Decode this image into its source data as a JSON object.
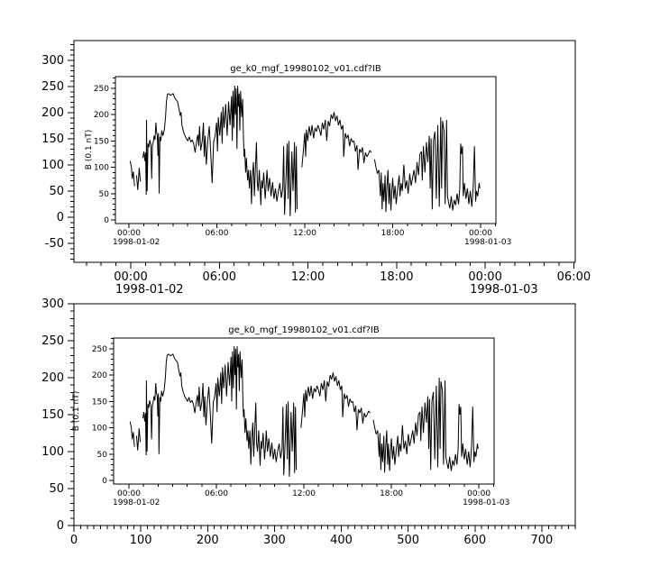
{
  "colors": {
    "foreground": "#000000",
    "background": "#ffffff"
  },
  "chart_data": {
    "type": "line",
    "title": "ge_k0_mgf_19980102_v01.cdf?IB",
    "inner_ylabel": "B (0.1 nT)",
    "series_name": "IB",
    "series_units": "0.1 nT",
    "x_units": "hours since 1998-01-02 00:00 UT",
    "inner_axis": {
      "ylim": [
        -7,
        272
      ],
      "xlim_hours": [
        -0.95,
        25.05
      ],
      "y_ticks": [
        0,
        50,
        100,
        150,
        200,
        250
      ],
      "y_minor": {
        "from": 0,
        "to": 270,
        "step": 10
      },
      "x_minor_hours": {
        "from": 0,
        "to": 25,
        "step": 1
      },
      "x_ticks": [
        {
          "hour": 0,
          "label": "00:00",
          "date": "1998-01-02"
        },
        {
          "hour": 6,
          "label": "06:00"
        },
        {
          "hour": 12,
          "label": "12:00"
        },
        {
          "hour": 18,
          "label": "18:00"
        },
        {
          "hour": 24,
          "label": "00:00",
          "date": "1998-01-03"
        }
      ]
    },
    "panels": [
      {
        "id": "top",
        "outer_x_type": "time",
        "outer_ylim": [
          -86,
          338
        ],
        "outer_y_ticks": [
          -50,
          0,
          50,
          100,
          150,
          200,
          250,
          300
        ],
        "outer_y_minor": {
          "from": -80,
          "to": 330,
          "step": 10
        },
        "outer_xlim_hours": [
          -3.85,
          30.1
        ],
        "outer_x_minor_hours": {
          "from": -3,
          "to": 30,
          "step": 1
        },
        "outer_x_ticks": [
          {
            "hour": 0,
            "label": "00:00",
            "date": "1998-01-02"
          },
          {
            "hour": 6,
            "label": "06:00"
          },
          {
            "hour": 12,
            "label": "12:00"
          },
          {
            "hour": 18,
            "label": "18:00"
          },
          {
            "hour": 24,
            "label": "00:00",
            "date": "1998-01-03"
          },
          {
            "hour": 30,
            "label": "06:00"
          }
        ]
      },
      {
        "id": "bottom",
        "outer_x_type": "numeric",
        "outer_ylim": [
          0,
          300
        ],
        "outer_y_ticks": [
          0,
          50,
          100,
          150,
          200,
          250,
          300
        ],
        "outer_y_minor": {
          "from": 0,
          "to": 300,
          "step": 10
        },
        "outer_xlim": [
          0,
          750
        ],
        "outer_x_minor": {
          "from": 0,
          "to": 750,
          "step": 10
        },
        "outer_x_ticks": [
          0,
          100,
          200,
          300,
          400,
          500,
          600,
          700
        ]
      }
    ],
    "points": [
      [
        0.08,
        112
      ],
      [
        0.17,
        100
      ],
      [
        0.22,
        78
      ],
      [
        0.3,
        92
      ],
      [
        0.38,
        64
      ],
      [
        0.45,
        null
      ],
      [
        0.52,
        85
      ],
      [
        0.6,
        57
      ],
      [
        0.7,
        99
      ],
      [
        0.78,
        73
      ],
      [
        0.85,
        null
      ],
      [
        0.95,
        118
      ],
      [
        1.02,
        130
      ],
      [
        1.08,
        112
      ],
      [
        1.14,
        128
      ],
      [
        1.18,
        48
      ],
      [
        1.2,
        190
      ],
      [
        1.24,
        55
      ],
      [
        1.3,
        145
      ],
      [
        1.36,
        138
      ],
      [
        1.42,
        152
      ],
      [
        1.5,
        143
      ],
      [
        1.55,
        78
      ],
      [
        1.6,
        140
      ],
      [
        1.66,
        148
      ],
      [
        1.72,
        160
      ],
      [
        1.78,
        152
      ],
      [
        1.84,
        185
      ],
      [
        1.88,
        168
      ],
      [
        1.94,
        160
      ],
      [
        1.98,
        122
      ],
      [
        2.02,
        165
      ],
      [
        2.06,
        50
      ],
      [
        2.12,
        158
      ],
      [
        2.18,
        150
      ],
      [
        2.24,
        170
      ],
      [
        2.32,
        160
      ],
      [
        2.42,
        172
      ],
      [
        2.5,
        195
      ],
      [
        2.56,
        225
      ],
      [
        2.62,
        238
      ],
      [
        2.72,
        240
      ],
      [
        2.82,
        237
      ],
      [
        2.92,
        238
      ],
      [
        3.02,
        240
      ],
      [
        3.12,
        232
      ],
      [
        3.22,
        228
      ],
      [
        3.32,
        225
      ],
      [
        3.42,
        210
      ],
      [
        3.5,
        198
      ],
      [
        3.56,
        205
      ],
      [
        3.62,
        180
      ],
      [
        3.72,
        168
      ],
      [
        3.82,
        160
      ],
      [
        3.92,
        155
      ],
      [
        4.02,
        150
      ],
      [
        4.12,
        158
      ],
      [
        4.22,
        148
      ],
      [
        4.32,
        152
      ],
      [
        4.42,
        145
      ],
      [
        4.52,
        128
      ],
      [
        4.62,
        150
      ],
      [
        4.7,
        162
      ],
      [
        4.76,
        140
      ],
      [
        4.82,
        178
      ],
      [
        4.9,
        132
      ],
      [
        5.0,
        150
      ],
      [
        5.08,
        185
      ],
      [
        5.14,
        120
      ],
      [
        5.2,
        160
      ],
      [
        5.28,
        105
      ],
      [
        5.38,
        150
      ],
      [
        5.48,
        178
      ],
      [
        5.58,
        128
      ],
      [
        5.68,
        70
      ],
      [
        5.78,
        148
      ],
      [
        5.88,
        160
      ],
      [
        5.98,
        185
      ],
      [
        6.04,
        130
      ],
      [
        6.1,
        195
      ],
      [
        6.2,
        160
      ],
      [
        6.3,
        205
      ],
      [
        6.36,
        145
      ],
      [
        6.42,
        215
      ],
      [
        6.5,
        175
      ],
      [
        6.6,
        220
      ],
      [
        6.7,
        160
      ],
      [
        6.8,
        225
      ],
      [
        6.9,
        180
      ],
      [
        7.0,
        235
      ],
      [
        7.05,
        150
      ],
      [
        7.1,
        245
      ],
      [
        7.16,
        175
      ],
      [
        7.22,
        255
      ],
      [
        7.27,
        200
      ],
      [
        7.32,
        250
      ],
      [
        7.37,
        135
      ],
      [
        7.42,
        255
      ],
      [
        7.47,
        215
      ],
      [
        7.52,
        240
      ],
      [
        7.57,
        170
      ],
      [
        7.62,
        245
      ],
      [
        7.7,
        195
      ],
      [
        7.76,
        230
      ],
      [
        7.82,
        150
      ],
      [
        7.86,
        120
      ],
      [
        7.9,
        135
      ],
      [
        7.96,
        90
      ],
      [
        8.02,
        118
      ],
      [
        8.1,
        75
      ],
      [
        8.16,
        95
      ],
      [
        8.22,
        60
      ],
      [
        8.3,
        95
      ],
      [
        8.36,
        30
      ],
      [
        8.42,
        80
      ],
      [
        8.5,
        110
      ],
      [
        8.56,
        45
      ],
      [
        8.62,
        90
      ],
      [
        8.7,
        148
      ],
      [
        8.76,
        70
      ],
      [
        8.82,
        55
      ],
      [
        8.9,
        95
      ],
      [
        9.0,
        28
      ],
      [
        9.06,
        75
      ],
      [
        9.12,
        60
      ],
      [
        9.2,
        90
      ],
      [
        9.3,
        40
      ],
      [
        9.36,
        65
      ],
      [
        9.42,
        95
      ],
      [
        9.5,
        55
      ],
      [
        9.6,
        80
      ],
      [
        9.7,
        45
      ],
      [
        9.8,
        72
      ],
      [
        9.9,
        40
      ],
      [
        10.0,
        60
      ],
      [
        10.1,
        35
      ],
      [
        10.2,
        55
      ],
      [
        10.3,
        70
      ],
      [
        10.4,
        42
      ],
      [
        10.5,
        60
      ],
      [
        10.56,
        140
      ],
      [
        10.62,
        10
      ],
      [
        10.68,
        50
      ],
      [
        10.74,
        95
      ],
      [
        10.8,
        145
      ],
      [
        10.86,
        40
      ],
      [
        10.92,
        150
      ],
      [
        11.0,
        7
      ],
      [
        11.06,
        60
      ],
      [
        11.12,
        130
      ],
      [
        11.2,
        55
      ],
      [
        11.3,
        148
      ],
      [
        11.36,
        14
      ],
      [
        11.42,
        140
      ],
      [
        11.48,
        20
      ],
      [
        11.52,
        null
      ],
      [
        11.8,
        100
      ],
      [
        11.9,
        130
      ],
      [
        12.0,
        165
      ],
      [
        12.06,
        120
      ],
      [
        12.12,
        172
      ],
      [
        12.2,
        150
      ],
      [
        12.3,
        178
      ],
      [
        12.4,
        160
      ],
      [
        12.5,
        180
      ],
      [
        12.6,
        155
      ],
      [
        12.7,
        175
      ],
      [
        12.8,
        168
      ],
      [
        12.9,
        180
      ],
      [
        13.0,
        172
      ],
      [
        13.1,
        160
      ],
      [
        13.2,
        185
      ],
      [
        13.3,
        172
      ],
      [
        13.4,
        190
      ],
      [
        13.5,
        150
      ],
      [
        13.6,
        188
      ],
      [
        13.7,
        178
      ],
      [
        13.8,
        200
      ],
      [
        13.9,
        192
      ],
      [
        14.0,
        205
      ],
      [
        14.1,
        188
      ],
      [
        14.2,
        198
      ],
      [
        14.3,
        180
      ],
      [
        14.4,
        190
      ],
      [
        14.5,
        172
      ],
      [
        14.6,
        180
      ],
      [
        14.66,
        120
      ],
      [
        14.76,
        165
      ],
      [
        14.86,
        155
      ],
      [
        14.96,
        162
      ],
      [
        15.06,
        140
      ],
      [
        15.16,
        155
      ],
      [
        15.26,
        148
      ],
      [
        15.36,
        150
      ],
      [
        15.46,
        130
      ],
      [
        15.56,
        142
      ],
      [
        15.64,
        95
      ],
      [
        15.74,
        135
      ],
      [
        15.84,
        128
      ],
      [
        15.94,
        138
      ],
      [
        16.04,
        108
      ],
      [
        16.14,
        128
      ],
      [
        16.24,
        120
      ],
      [
        16.34,
        125
      ],
      [
        16.44,
        132
      ],
      [
        16.54,
        128
      ],
      [
        16.6,
        null
      ],
      [
        16.76,
        115
      ],
      [
        16.86,
        100
      ],
      [
        16.96,
        88
      ],
      [
        17.06,
        95
      ],
      [
        17.16,
        45
      ],
      [
        17.22,
        90
      ],
      [
        17.28,
        20
      ],
      [
        17.34,
        70
      ],
      [
        17.4,
        35
      ],
      [
        17.48,
        85
      ],
      [
        17.54,
        15
      ],
      [
        17.6,
        60
      ],
      [
        17.68,
        95
      ],
      [
        17.74,
        30
      ],
      [
        17.8,
        70
      ],
      [
        17.88,
        18
      ],
      [
        17.94,
        55
      ],
      [
        18.0,
        80
      ],
      [
        18.08,
        40
      ],
      [
        18.16,
        65
      ],
      [
        18.24,
        30
      ],
      [
        18.34,
        60
      ],
      [
        18.44,
        85
      ],
      [
        18.5,
        45
      ],
      [
        18.58,
        70
      ],
      [
        18.66,
        55
      ],
      [
        18.76,
        105
      ],
      [
        18.86,
        60
      ],
      [
        18.96,
        75
      ],
      [
        19.06,
        50
      ],
      [
        19.16,
        88
      ],
      [
        19.26,
        65
      ],
      [
        19.36,
        80
      ],
      [
        19.46,
        95
      ],
      [
        19.56,
        70
      ],
      [
        19.66,
        110
      ],
      [
        19.76,
        85
      ],
      [
        19.86,
        125
      ],
      [
        19.96,
        130
      ],
      [
        20.02,
        75
      ],
      [
        20.1,
        140
      ],
      [
        20.2,
        90
      ],
      [
        20.3,
        148
      ],
      [
        20.4,
        110
      ],
      [
        20.5,
        160
      ],
      [
        20.56,
        60
      ],
      [
        20.62,
        155
      ],
      [
        20.7,
        20
      ],
      [
        20.78,
        150
      ],
      [
        20.88,
        168
      ],
      [
        20.98,
        40
      ],
      [
        21.08,
        180
      ],
      [
        21.18,
        25
      ],
      [
        21.28,
        195
      ],
      [
        21.34,
        60
      ],
      [
        21.4,
        188
      ],
      [
        21.5,
        170
      ],
      [
        21.58,
        30
      ],
      [
        21.68,
        190
      ],
      [
        21.74,
        45
      ],
      [
        21.8,
        35
      ],
      [
        21.9,
        22
      ],
      [
        22.0,
        45
      ],
      [
        22.1,
        18
      ],
      [
        22.2,
        38
      ],
      [
        22.3,
        28
      ],
      [
        22.4,
        50
      ],
      [
        22.5,
        30
      ],
      [
        22.58,
        60
      ],
      [
        22.64,
        145
      ],
      [
        22.7,
        125
      ],
      [
        22.76,
        140
      ],
      [
        22.82,
        45
      ],
      [
        22.9,
        70
      ],
      [
        23.0,
        40
      ],
      [
        23.1,
        60
      ],
      [
        23.2,
        30
      ],
      [
        23.3,
        55
      ],
      [
        23.4,
        25
      ],
      [
        23.5,
        65
      ],
      [
        23.58,
        140
      ],
      [
        23.66,
        35
      ],
      [
        23.72,
        55
      ],
      [
        23.8,
        45
      ],
      [
        23.9,
        70
      ],
      [
        23.95,
        60
      ]
    ]
  }
}
